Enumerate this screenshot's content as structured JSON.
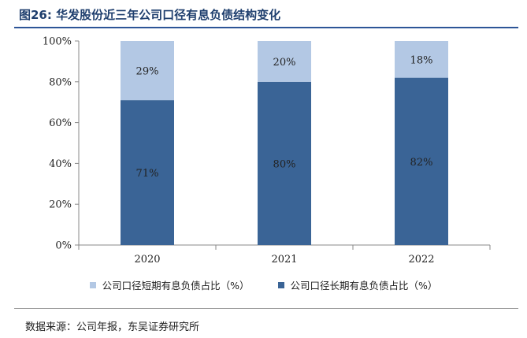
{
  "figure": {
    "title": "图26:  华发股份近三年公司口径有息负债结构变化",
    "source": "数据来源：公司年报，东吴证券研究所"
  },
  "chart_data": {
    "type": "bar",
    "stacked": true,
    "categories": [
      "2020",
      "2021",
      "2022"
    ],
    "series": [
      {
        "name": "公司口径长期有息负债占比（%）",
        "values": [
          71,
          80,
          82
        ],
        "labels": [
          "71%",
          "80%",
          "82%"
        ],
        "color": "#3a6496"
      },
      {
        "name": "公司口径短期有息负债占比（%）",
        "values": [
          29,
          20,
          18
        ],
        "labels": [
          "29%",
          "20%",
          "18%"
        ],
        "color": "#b3c8e4"
      }
    ],
    "ylim": [
      0,
      100
    ],
    "yticks": [
      "0%",
      "20%",
      "40%",
      "60%",
      "80%",
      "100%"
    ],
    "legend": {
      "order": [
        1,
        0
      ],
      "position": "bottom"
    },
    "grid": false
  }
}
